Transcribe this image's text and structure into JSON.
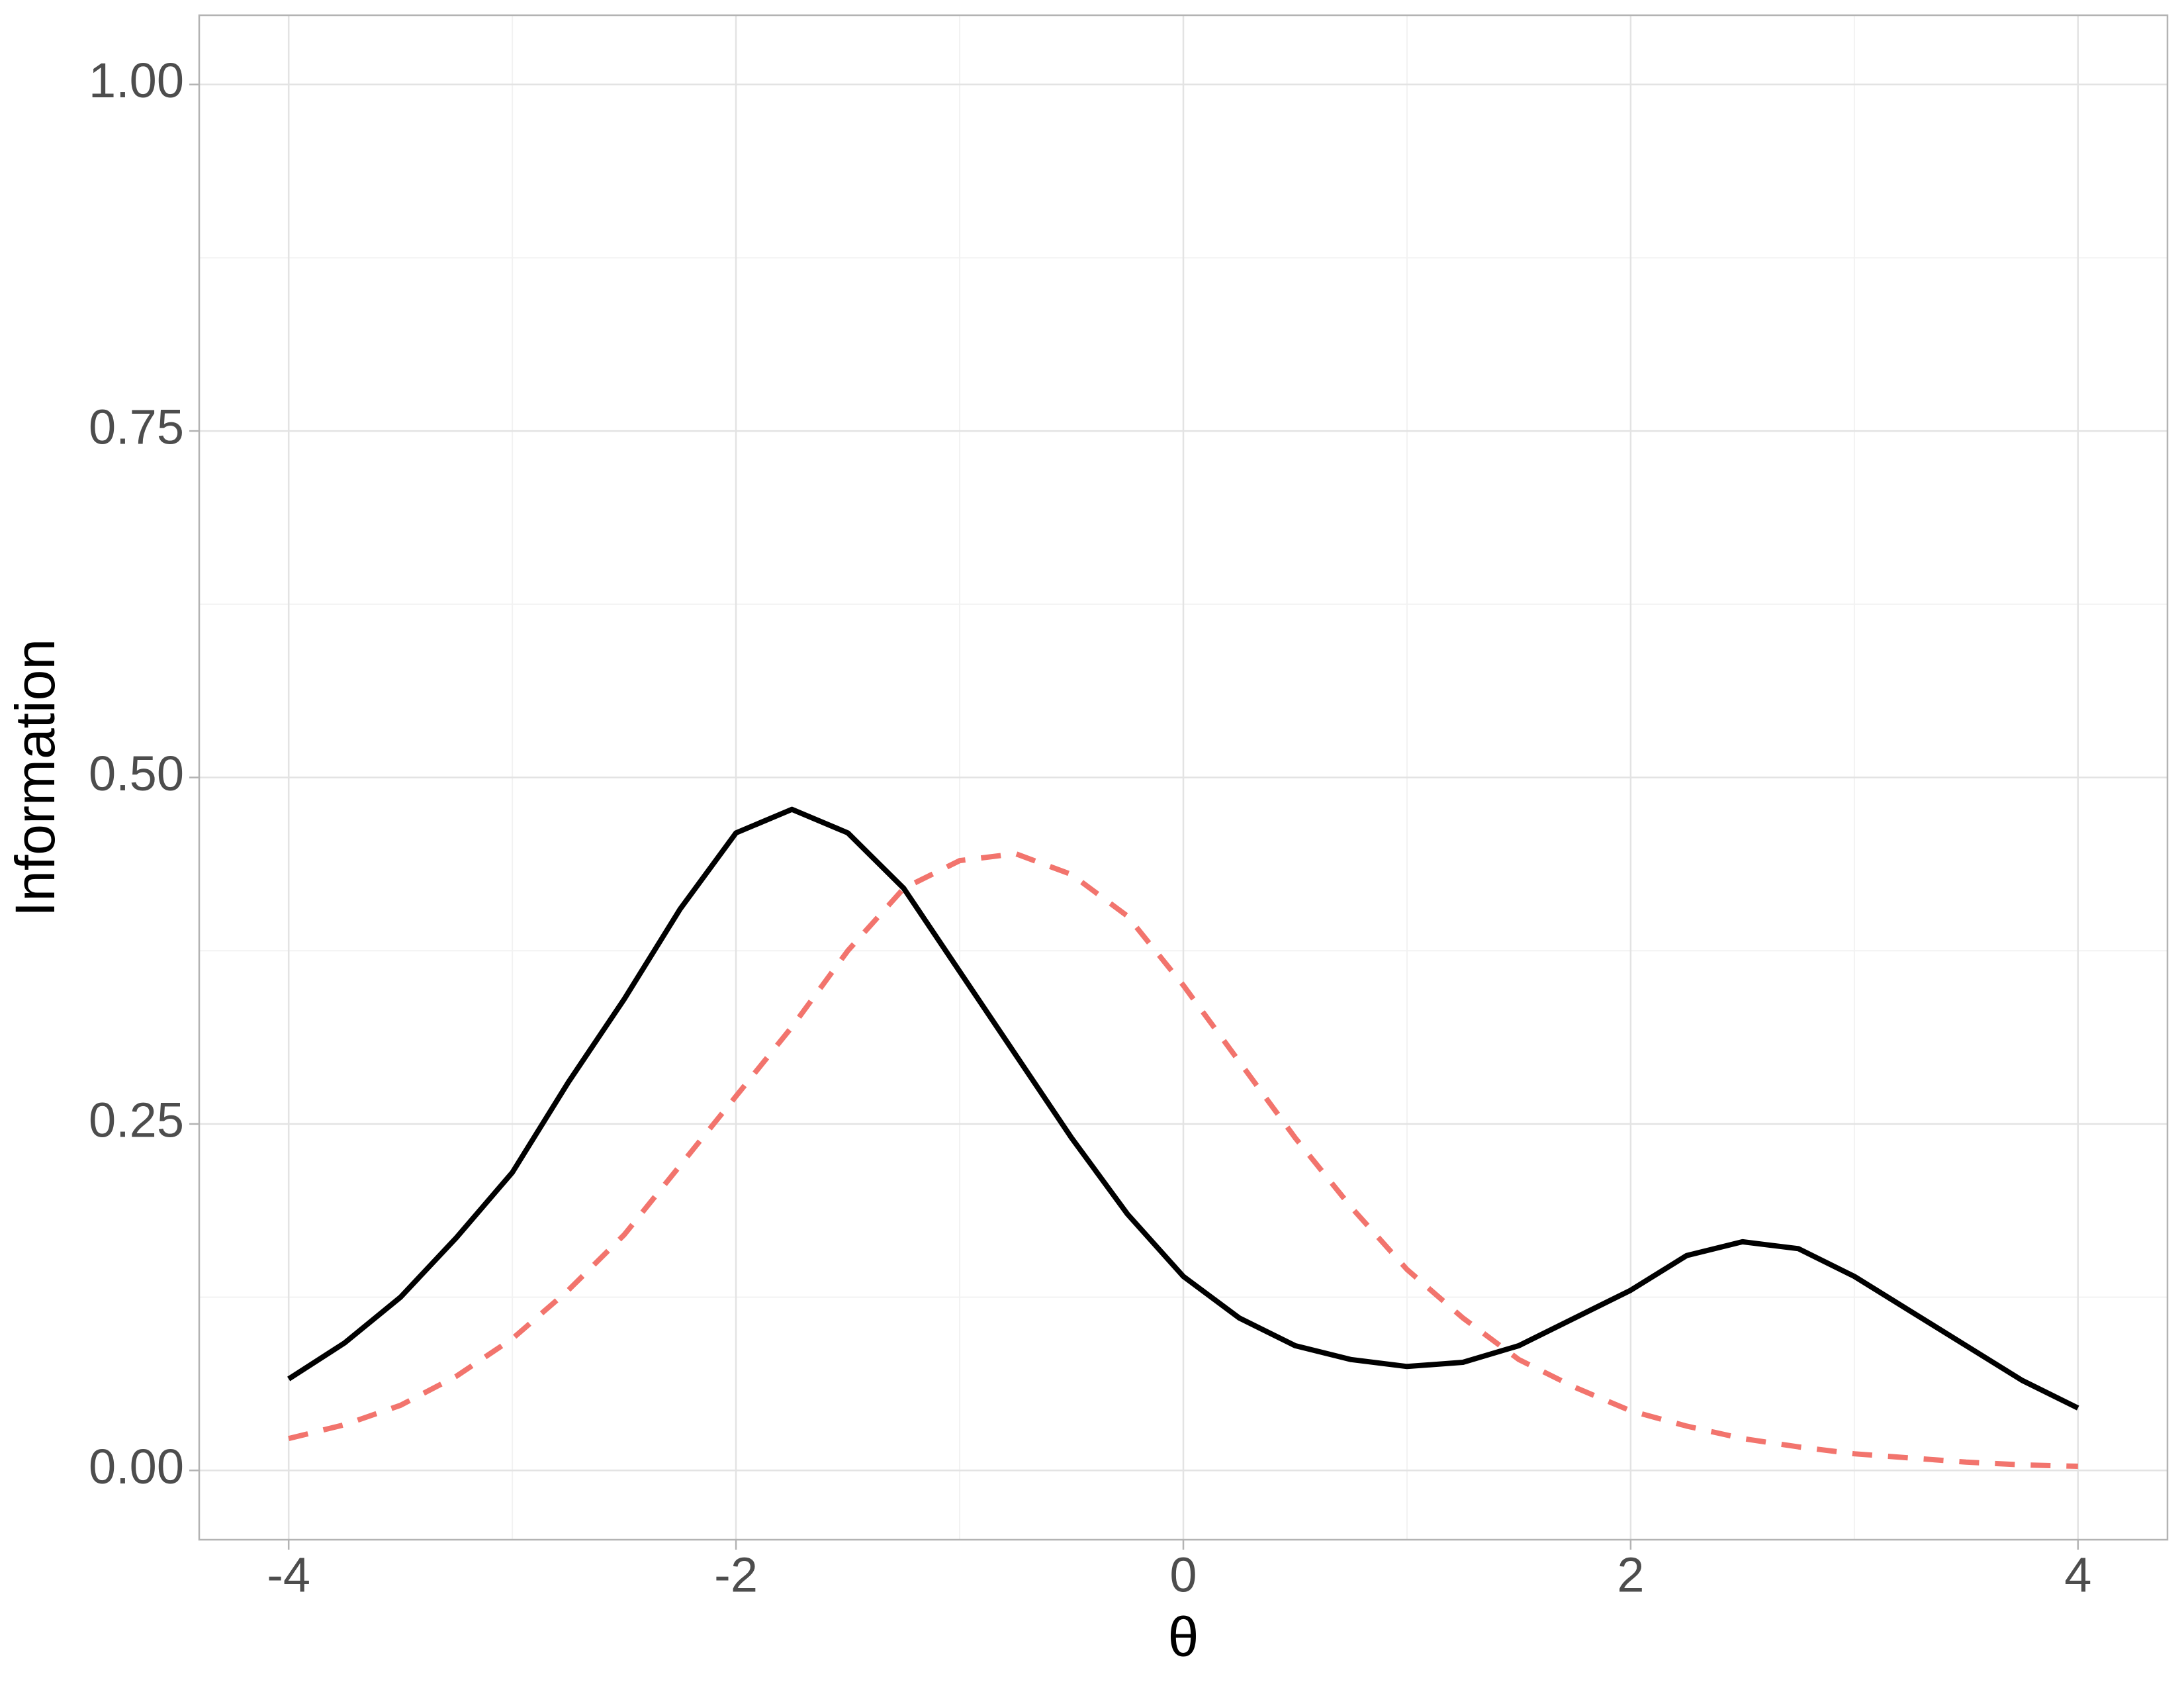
{
  "chart_data": {
    "type": "line",
    "x_label": "θ",
    "y_label": "Information",
    "x": [
      -4,
      -3.75,
      -3.5,
      -3.25,
      -3,
      -2.75,
      -2.5,
      -2.25,
      -2,
      -1.75,
      -1.5,
      -1.25,
      -1,
      -0.75,
      -0.5,
      -0.25,
      0,
      0.25,
      0.5,
      0.75,
      1,
      1.25,
      1.5,
      1.75,
      2,
      2.25,
      2.5,
      2.75,
      3,
      3.25,
      3.5,
      3.75,
      4
    ],
    "series": [
      {
        "color": "#000000",
        "dash": "solid",
        "values": [
          0.066,
          0.092,
          0.125,
          0.168,
          0.215,
          0.28,
          0.34,
          0.405,
          0.46,
          0.477,
          0.46,
          0.42,
          0.36,
          0.3,
          0.24,
          0.185,
          0.14,
          0.11,
          0.09,
          0.08,
          0.075,
          0.078,
          0.09,
          0.11,
          0.13,
          0.155,
          0.165,
          0.16,
          0.14,
          0.115,
          0.09,
          0.065,
          0.045
        ]
      },
      {
        "color": "#f2746d",
        "dash": "dashed",
        "values": [
          0.023,
          0.033,
          0.047,
          0.068,
          0.095,
          0.13,
          0.17,
          0.22,
          0.27,
          0.32,
          0.375,
          0.42,
          0.44,
          0.445,
          0.43,
          0.4,
          0.35,
          0.295,
          0.24,
          0.19,
          0.145,
          0.11,
          0.08,
          0.06,
          0.043,
          0.032,
          0.023,
          0.017,
          0.012,
          0.009,
          0.006,
          0.004,
          0.003
        ]
      }
    ],
    "xlim": [
      -4.4,
      4.4
    ],
    "ylim": [
      -0.05,
      1.05
    ],
    "xticks": [
      -4,
      -2,
      0,
      2,
      4
    ],
    "yticks": [
      {
        "value": 0,
        "label": "0.00"
      },
      {
        "value": 0.25,
        "label": "0.25"
      },
      {
        "value": 0.5,
        "label": "0.50"
      },
      {
        "value": 0.75,
        "label": "0.75"
      },
      {
        "value": 1,
        "label": "1.00"
      }
    ],
    "x_minor_ticks": [
      -3,
      -1,
      1,
      3
    ],
    "y_minor_ticks": [
      0.125,
      0.375,
      0.625,
      0.875
    ],
    "grid": true
  }
}
